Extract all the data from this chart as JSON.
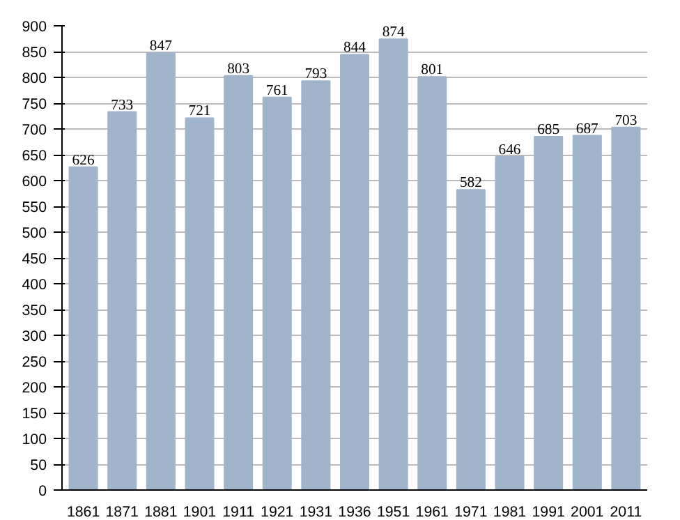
{
  "chart_data": {
    "type": "bar",
    "categories": [
      "1861",
      "1871",
      "1881",
      "1901",
      "1911",
      "1921",
      "1931",
      "1936",
      "1951",
      "1961",
      "1971",
      "1981",
      "1991",
      "2001",
      "2011"
    ],
    "values": [
      626,
      733,
      847,
      721,
      803,
      761,
      793,
      844,
      874,
      801,
      582,
      646,
      685,
      687,
      703
    ],
    "color": "#a0b4cc",
    "data_labels": true,
    "grid": "y",
    "ylim": [
      0,
      900
    ],
    "yticks": [
      0,
      50,
      100,
      150,
      200,
      250,
      300,
      350,
      400,
      450,
      500,
      550,
      600,
      650,
      700,
      750,
      800,
      850,
      900
    ]
  }
}
